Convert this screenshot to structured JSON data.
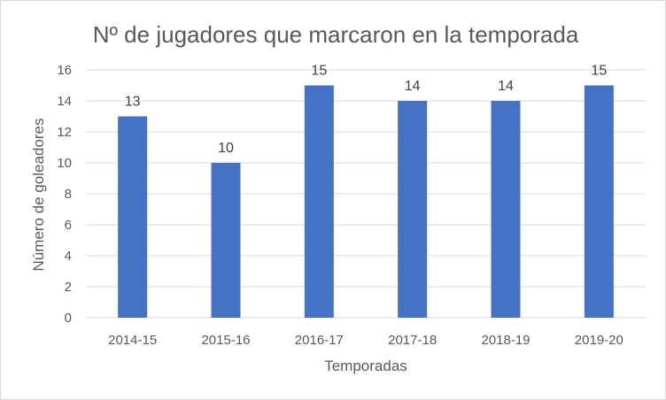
{
  "chart_data": {
    "type": "bar",
    "title": "Nº de jugadores que marcaron en la temporada",
    "xlabel": "Temporadas",
    "ylabel": "Número de goleadores",
    "categories": [
      "2014-15",
      "2015-16",
      "2016-17",
      "2017-18",
      "2018-19",
      "2019-20"
    ],
    "values": [
      13,
      10,
      15,
      14,
      14,
      15
    ],
    "ylim": [
      0,
      16
    ],
    "yticks": [
      0,
      2,
      4,
      6,
      8,
      10,
      12,
      14,
      16
    ],
    "grid": true,
    "legend": "none",
    "data_labels": true,
    "bar_color": "#4472c4"
  }
}
